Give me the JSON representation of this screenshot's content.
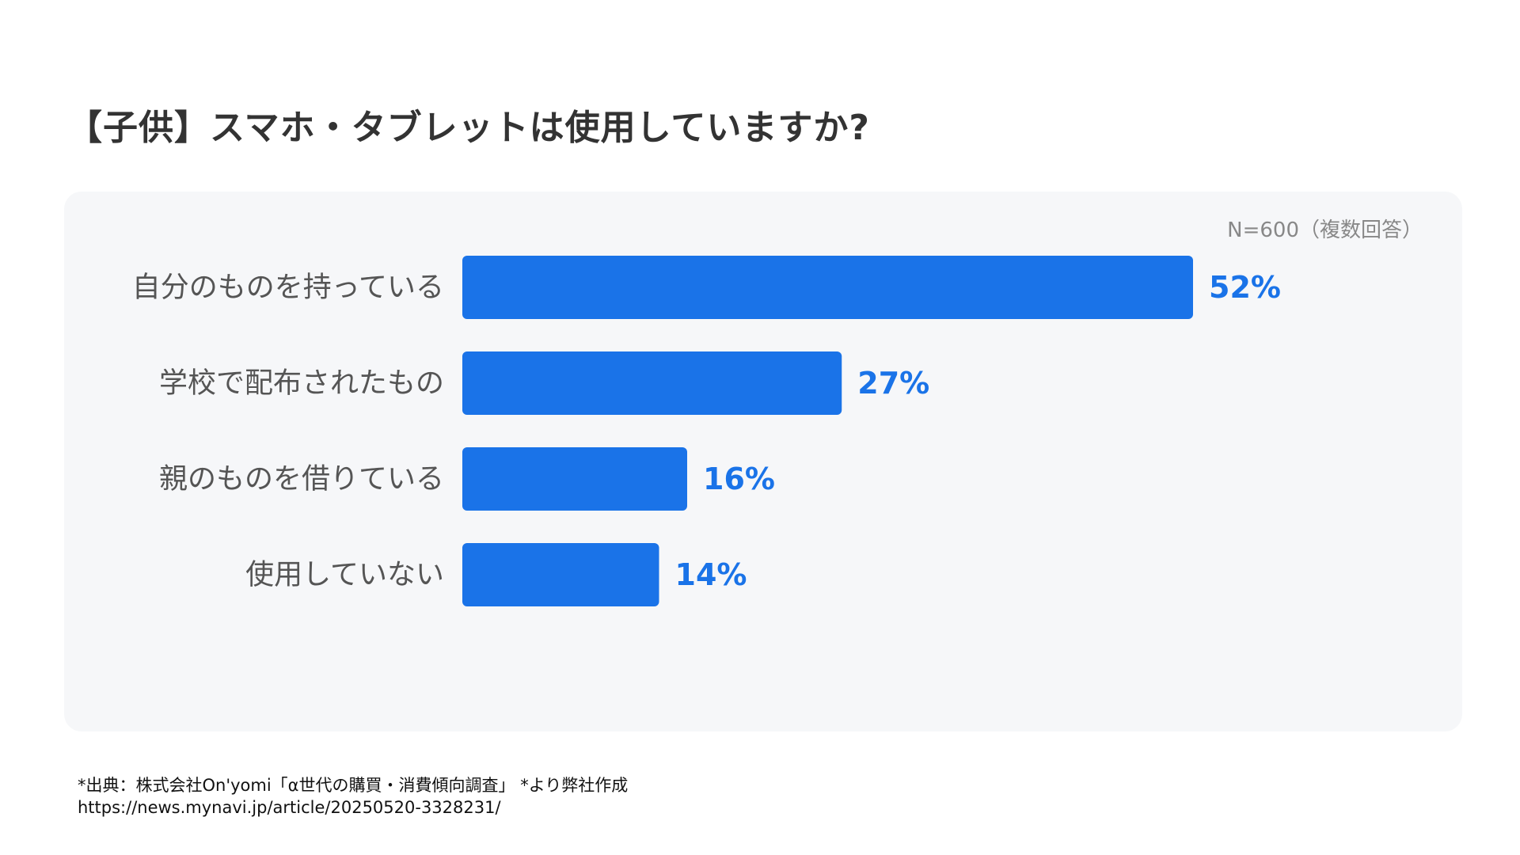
{
  "title": "【子供】スマホ・タブレットは使用していますか?",
  "sample_note": "N=600（複数回答）",
  "colors": {
    "bar": "#1a73e8",
    "value_label": "#1a73e8",
    "category_label": "#555555",
    "panel_background": "#f6f7f9"
  },
  "chart_data": {
    "type": "bar",
    "orientation": "horizontal",
    "categories": [
      "自分のものを持っている",
      "学校で配布されたもの",
      "親のものを借りている",
      "使用していない"
    ],
    "values": [
      52,
      27,
      16,
      14
    ],
    "value_labels": [
      "52%",
      "27%",
      "16%",
      "14%"
    ],
    "unit": "%",
    "title": "【子供】スマホ・タブレットは使用していますか?",
    "xlabel": "",
    "ylabel": "",
    "xlim": [
      0,
      100
    ],
    "grid": false,
    "legend": "none"
  },
  "source": {
    "line1": "*出典：株式会社On'yomi「α世代の購買・消費傾向調査」 *より弊社作成",
    "line2": "https://news.mynavi.jp/article/20250520-3328231/"
  }
}
